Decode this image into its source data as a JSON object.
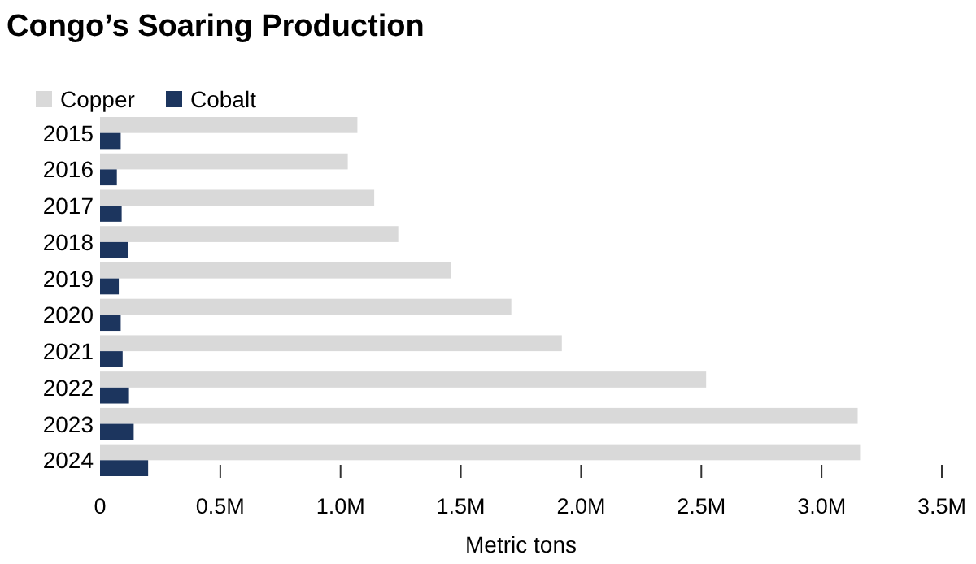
{
  "chart_data": {
    "type": "bar",
    "orientation": "horizontal",
    "title": "Congo’s Soaring Production",
    "xlabel": "Metric tons",
    "categories": [
      "2015",
      "2016",
      "2017",
      "2018",
      "2019",
      "2020",
      "2021",
      "2022",
      "2023",
      "2024"
    ],
    "series": [
      {
        "name": "Copper",
        "color": "#d9d9d9",
        "values": [
          1070000,
          1030000,
          1140000,
          1240000,
          1460000,
          1710000,
          1920000,
          2520000,
          3150000,
          3160000
        ]
      },
      {
        "name": "Cobalt",
        "color": "#1c355e",
        "values": [
          86000,
          70000,
          90000,
          115000,
          78000,
          86000,
          94000,
          117000,
          140000,
          200000
        ]
      }
    ],
    "xlim": [
      0,
      3500000
    ],
    "xticks": [
      {
        "value": 0,
        "label": "0"
      },
      {
        "value": 500000,
        "label": "0.5M"
      },
      {
        "value": 1000000,
        "label": "1.0M"
      },
      {
        "value": 1500000,
        "label": "1.5M"
      },
      {
        "value": 2000000,
        "label": "2.0M"
      },
      {
        "value": 2500000,
        "label": "2.5M"
      },
      {
        "value": 3000000,
        "label": "3.0M"
      },
      {
        "value": 3500000,
        "label": "3.5M"
      }
    ],
    "legend": "top left",
    "grid": false
  }
}
